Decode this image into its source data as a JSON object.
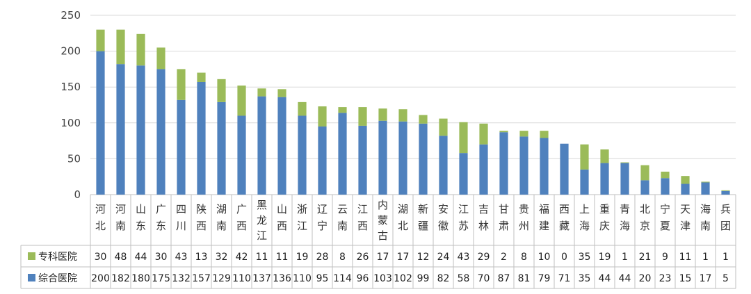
{
  "chart_data": {
    "type": "bar",
    "stacked": true,
    "title": "",
    "xlabel": "",
    "ylabel": "",
    "ylim": [
      0,
      250
    ],
    "y_ticks": [
      "0",
      "50",
      "100",
      "150",
      "200",
      "250"
    ],
    "grid": true,
    "legend_position": "data table below chart",
    "categories": [
      "河北",
      "河南",
      "山东",
      "广东",
      "四川",
      "陕西",
      "湖南",
      "广西",
      "黑龙江",
      "山西",
      "浙江",
      "辽宁",
      "云南",
      "江西",
      "内蒙古",
      "湖北",
      "新疆",
      "安徽",
      "江苏",
      "吉林",
      "甘肃",
      "贵州",
      "福建",
      "西藏",
      "上海",
      "重庆",
      "青海",
      "北京",
      "宁夏",
      "天津",
      "海南",
      "兵团"
    ],
    "series": [
      {
        "name": "综合医院",
        "color": "#4f81bd",
        "values": [
          200,
          182,
          180,
          175,
          132,
          157,
          129,
          110,
          137,
          136,
          110,
          95,
          114,
          96,
          103,
          102,
          99,
          82,
          58,
          70,
          87,
          81,
          79,
          71,
          35,
          44,
          44,
          20,
          23,
          15,
          17,
          5
        ]
      },
      {
        "name": "专科医院",
        "color": "#9bbb59",
        "values": [
          30,
          48,
          44,
          30,
          43,
          13,
          32,
          42,
          11,
          11,
          19,
          28,
          8,
          26,
          17,
          17,
          12,
          24,
          43,
          29,
          2,
          8,
          10,
          0,
          35,
          19,
          1,
          21,
          9,
          11,
          1,
          1
        ]
      }
    ]
  }
}
